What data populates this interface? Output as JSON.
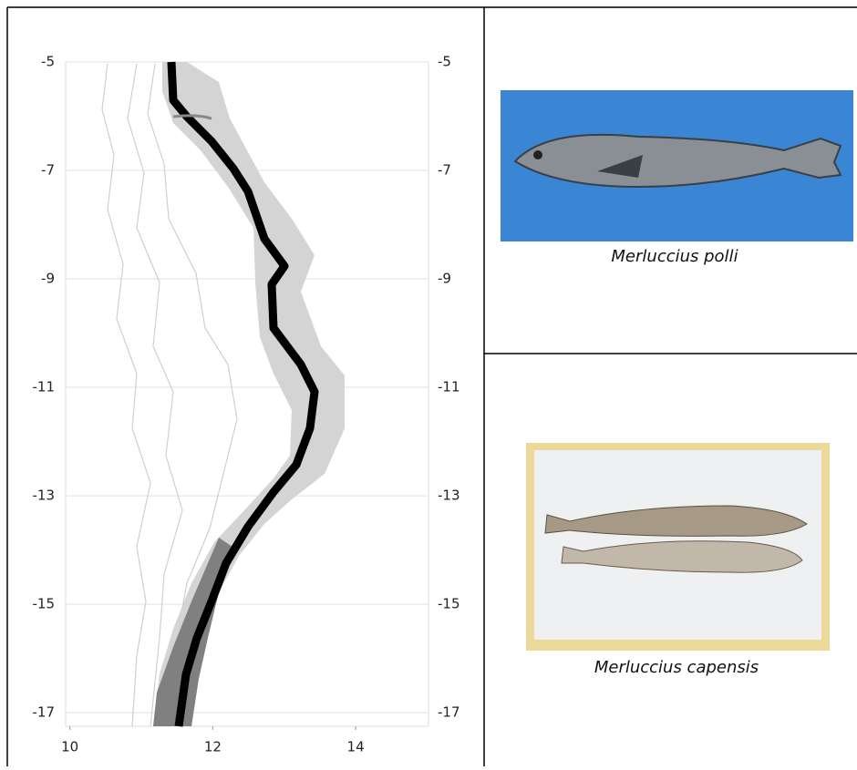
{
  "map": {
    "xlim": [
      9.94,
      15.02
    ],
    "ylim": [
      -17.25,
      -5
    ],
    "xticks": [
      10,
      12,
      14
    ],
    "yticks": [
      -5,
      -7,
      -9,
      -11,
      -13,
      -15,
      -17
    ],
    "grid": true
  },
  "photos": [
    {
      "caption": "Merluccius polli"
    },
    {
      "caption": "Merluccius capensis"
    }
  ]
}
